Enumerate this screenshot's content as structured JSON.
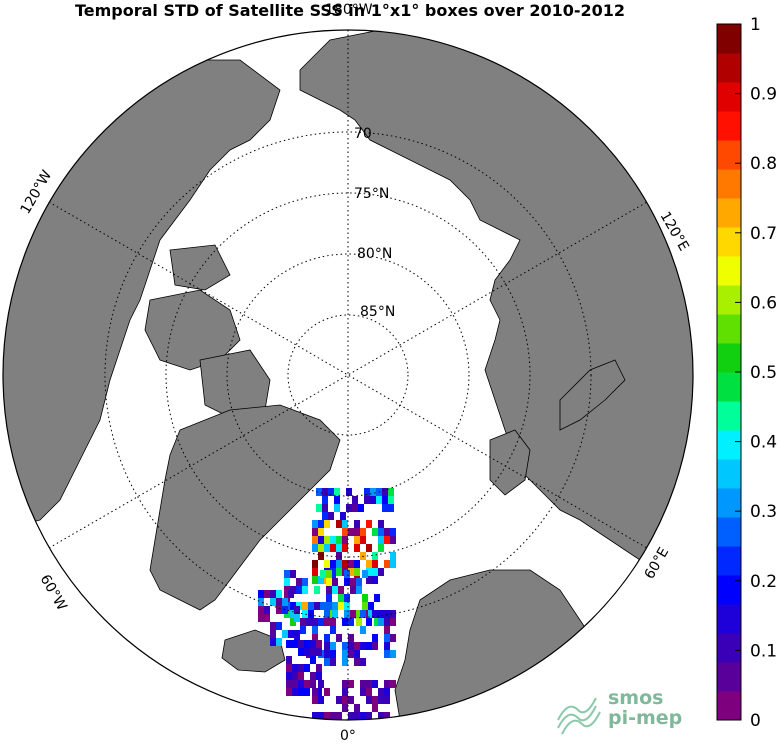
{
  "title": "Temporal STD of Satellite SSS in 1°x1° boxes over 2010-2012",
  "map": {
    "projection": "north-polar-stereographic",
    "land_color": "#808080",
    "ocean_color": "#ffffff",
    "lat_circles": [
      70,
      75,
      80,
      85
    ],
    "lat_labels": [
      "70",
      "75°N",
      "80°N",
      "85°N"
    ],
    "lon_labels": {
      "top": "180°W",
      "bottom": "0°",
      "upper_left": "120°W",
      "upper_right": "120°E",
      "lower_left": "60°W",
      "lower_right": "60°E"
    }
  },
  "colorbar": {
    "min": 0,
    "max": 1,
    "tick_labels": [
      "1",
      "0.9",
      "0.8",
      "0.7",
      "0.6",
      "0.5",
      "0.4",
      "0.3",
      "0.2",
      "0.1",
      "0"
    ],
    "colors": [
      "#7f007f",
      "#5a009a",
      "#3a00b8",
      "#1e00d8",
      "#0000ff",
      "#0028ff",
      "#0060ff",
      "#0098ff",
      "#00c8ff",
      "#00f0ff",
      "#00ff9a",
      "#00e040",
      "#10d010",
      "#60e000",
      "#a8f000",
      "#f0ff00",
      "#ffd800",
      "#ffa800",
      "#ff7800",
      "#ff4800",
      "#ff1000",
      "#e00000",
      "#b00000",
      "#800000"
    ]
  },
  "logo": {
    "line1": "smos",
    "line2": "pi-mep"
  }
}
